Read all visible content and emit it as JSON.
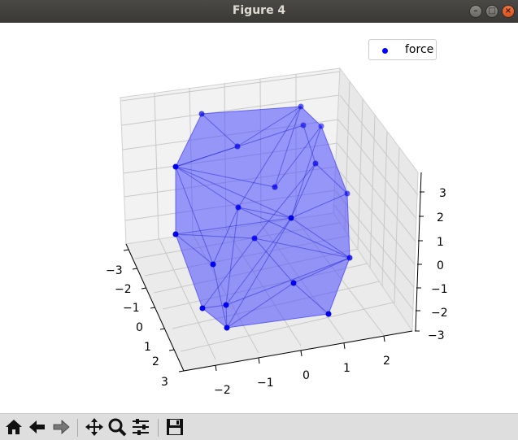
{
  "window": {
    "title": "Figure 4",
    "buttons": [
      "minimize",
      "maximize",
      "close"
    ]
  },
  "toolbar": {
    "buttons": [
      {
        "name": "home-button",
        "icon": "home-icon"
      },
      {
        "name": "back-button",
        "icon": "back-arrow-icon"
      },
      {
        "name": "forward-button",
        "icon": "forward-arrow-icon"
      },
      {
        "name": "pan-button",
        "icon": "move-icon"
      },
      {
        "name": "zoom-button",
        "icon": "magnifier-icon"
      },
      {
        "name": "subplots-button",
        "icon": "sliders-icon"
      },
      {
        "name": "save-button",
        "icon": "floppy-icon"
      }
    ]
  },
  "legend": {
    "label": "force",
    "color": "#0000ff"
  },
  "axes": {
    "x_ticks": [
      "−3",
      "−2",
      "−1",
      "0",
      "1",
      "2",
      "3"
    ],
    "y_ticks": [
      "−2",
      "−1",
      "0",
      "1",
      "2"
    ],
    "z_ticks": [
      "3",
      "2",
      "1",
      "0",
      "−1",
      "−2",
      "−3"
    ]
  },
  "chart_data": {
    "type": "scatter",
    "projection": "3d",
    "series": [
      {
        "name": "force",
        "color": "#0000ff"
      }
    ],
    "hull_fill": "#4444ff",
    "grid": true,
    "legend_position": "top-right"
  }
}
